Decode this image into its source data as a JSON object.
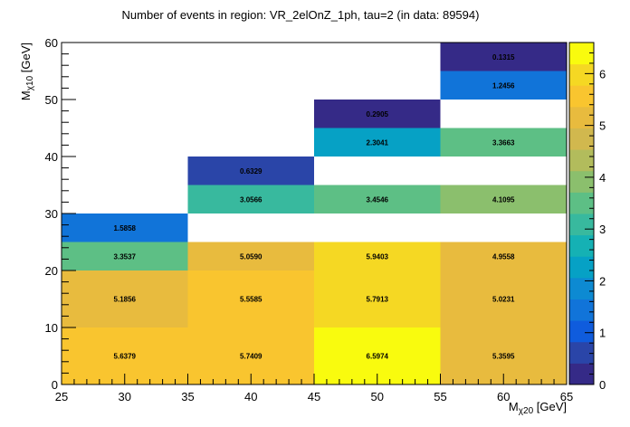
{
  "chart_data": {
    "type": "heatmap",
    "title": "Number of events in region: VR_2elOnZ_1ph, tau=2 (in data: 89594)",
    "xlabel_main": "M",
    "xlabel_sub": "χ20",
    "xlabel_unit": " [GeV]",
    "ylabel_main": "M",
    "ylabel_sub": "χ10",
    "ylabel_unit": " [GeV]",
    "xlim": [
      25,
      65
    ],
    "ylim": [
      0,
      60
    ],
    "zlim": [
      0,
      6.6
    ],
    "x_ticks": [
      25,
      30,
      35,
      40,
      45,
      50,
      55,
      60,
      65
    ],
    "y_ticks": [
      0,
      10,
      20,
      30,
      40,
      50,
      60
    ],
    "z_ticks": [
      0,
      1,
      2,
      3,
      4,
      5,
      6
    ],
    "cells": [
      {
        "x0": 25,
        "x1": 35,
        "y0": 0,
        "y1": 10,
        "value": 5.6379,
        "label": "5.6379"
      },
      {
        "x0": 35,
        "x1": 45,
        "y0": 0,
        "y1": 10,
        "value": 5.7409,
        "label": "5.7409"
      },
      {
        "x0": 45,
        "x1": 55,
        "y0": 0,
        "y1": 10,
        "value": 6.5974,
        "label": "6.5974"
      },
      {
        "x0": 55,
        "x1": 65,
        "y0": 0,
        "y1": 10,
        "value": 5.3595,
        "label": "5.3595"
      },
      {
        "x0": 25,
        "x1": 35,
        "y0": 10,
        "y1": 20,
        "value": 5.1856,
        "label": "5.1856"
      },
      {
        "x0": 35,
        "x1": 45,
        "y0": 10,
        "y1": 20,
        "value": 5.5585,
        "label": "5.5585"
      },
      {
        "x0": 45,
        "x1": 55,
        "y0": 10,
        "y1": 20,
        "value": 5.7913,
        "label": "5.7913"
      },
      {
        "x0": 55,
        "x1": 65,
        "y0": 10,
        "y1": 20,
        "value": 5.0231,
        "label": "5.0231"
      },
      {
        "x0": 25,
        "x1": 35,
        "y0": 20,
        "y1": 25,
        "value": 3.3537,
        "label": "3.3537"
      },
      {
        "x0": 35,
        "x1": 45,
        "y0": 20,
        "y1": 25,
        "value": 5.059,
        "label": "5.0590"
      },
      {
        "x0": 45,
        "x1": 55,
        "y0": 20,
        "y1": 25,
        "value": 5.9403,
        "label": "5.9403"
      },
      {
        "x0": 55,
        "x1": 65,
        "y0": 20,
        "y1": 25,
        "value": 4.9558,
        "label": "4.9558"
      },
      {
        "x0": 25,
        "x1": 35,
        "y0": 25,
        "y1": 30,
        "value": 1.5858,
        "label": "1.5858"
      },
      {
        "x0": 35,
        "x1": 45,
        "y0": 30,
        "y1": 35,
        "value": 3.0566,
        "label": "3.0566"
      },
      {
        "x0": 45,
        "x1": 55,
        "y0": 30,
        "y1": 35,
        "value": 3.4546,
        "label": "3.4546"
      },
      {
        "x0": 55,
        "x1": 65,
        "y0": 30,
        "y1": 35,
        "value": 4.1095,
        "label": "4.1095"
      },
      {
        "x0": 35,
        "x1": 45,
        "y0": 35,
        "y1": 40,
        "value": 0.6329,
        "label": "0.6329"
      },
      {
        "x0": 45,
        "x1": 55,
        "y0": 40,
        "y1": 45,
        "value": 2.3041,
        "label": "2.3041"
      },
      {
        "x0": 55,
        "x1": 65,
        "y0": 40,
        "y1": 45,
        "value": 3.3663,
        "label": "3.3663"
      },
      {
        "x0": 45,
        "x1": 55,
        "y0": 45,
        "y1": 50,
        "value": 0.2905,
        "label": "0.2905"
      },
      {
        "x0": 55,
        "x1": 65,
        "y0": 50,
        "y1": 55,
        "value": 1.2456,
        "label": "1.2456"
      },
      {
        "x0": 55,
        "x1": 65,
        "y0": 55,
        "y1": 60,
        "value": 0.1315,
        "label": "0.1315"
      }
    ],
    "palette": [
      "#352a87",
      "#2a45a8",
      "#0f5cdd",
      "#1174d9",
      "#0d8ad2",
      "#06a1c5",
      "#15b1b4",
      "#38b99e",
      "#5dbf85",
      "#8bbf6d",
      "#b2bc5c",
      "#d1b84e",
      "#e8bb3e",
      "#f9c52f",
      "#f5d823",
      "#f9fb0e"
    ]
  }
}
